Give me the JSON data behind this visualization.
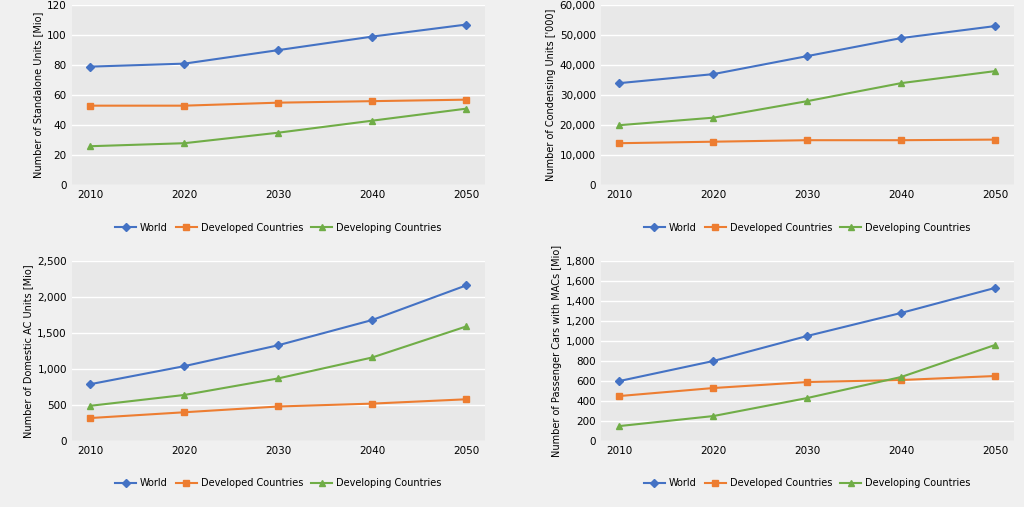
{
  "years": [
    2010,
    2020,
    2030,
    2040,
    2050
  ],
  "subplot1": {
    "ylabel": "Number of Standalone Units [Mio]",
    "ylim": [
      0,
      120
    ],
    "yticks": [
      0,
      20,
      40,
      60,
      80,
      100,
      120
    ],
    "world": [
      79,
      81,
      90,
      99,
      107
    ],
    "developed": [
      53,
      53,
      55,
      56,
      57
    ],
    "developing": [
      26,
      28,
      35,
      43,
      51
    ]
  },
  "subplot2": {
    "ylabel": "Number of Condensing Units ['000]",
    "ylim": [
      0,
      60000
    ],
    "yticks": [
      0,
      10000,
      20000,
      30000,
      40000,
      50000,
      60000
    ],
    "world": [
      34000,
      37000,
      43000,
      49000,
      53000
    ],
    "developed": [
      14000,
      14500,
      15000,
      15000,
      15200
    ],
    "developing": [
      20000,
      22500,
      28000,
      34000,
      38000
    ]
  },
  "subplot3": {
    "ylabel": "Number of Domestic AC Units [Mio]",
    "ylim": [
      0,
      2500
    ],
    "yticks": [
      0,
      500,
      1000,
      1500,
      2000,
      2500
    ],
    "world": [
      790,
      1040,
      1330,
      1680,
      2160
    ],
    "developed": [
      320,
      400,
      480,
      520,
      580
    ],
    "developing": [
      490,
      640,
      870,
      1160,
      1590
    ]
  },
  "subplot4": {
    "ylabel": "Number of Passenger Cars with MACs [Mio]",
    "ylim": [
      0,
      1800
    ],
    "yticks": [
      0,
      200,
      400,
      600,
      800,
      1000,
      1200,
      1400,
      1600,
      1800
    ],
    "world": [
      600,
      800,
      1050,
      1280,
      1530
    ],
    "developed": [
      450,
      530,
      590,
      610,
      650
    ],
    "developing": [
      150,
      250,
      430,
      640,
      960
    ]
  },
  "colors": {
    "world": "#4472C4",
    "developed": "#ED7D31",
    "developing": "#70AD47"
  },
  "legend_labels": [
    "World",
    "Developed Countries",
    "Developing Countries"
  ],
  "plot_bg_color": "#E8E8E8",
  "fig_bg_color": "#F0F0F0",
  "grid_color": "#FFFFFF",
  "marker_world": "D",
  "marker_developed": "s",
  "marker_developing": "^",
  "linewidth": 1.5,
  "markersize": 4
}
